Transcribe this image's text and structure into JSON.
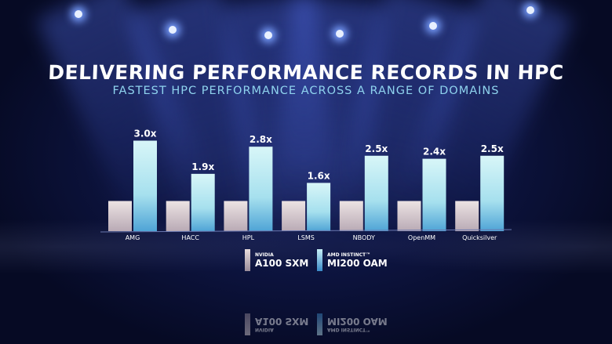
{
  "chart_data": {
    "type": "bar",
    "title": "DELIVERING PERFORMANCE RECORDS IN HPC",
    "subtitle": "FASTEST HPC PERFORMANCE ACROSS A RANGE OF DOMAINS",
    "categories": [
      "AMG",
      "HACC",
      "HPL",
      "LSMS",
      "NBODY",
      "OpenMM",
      "Quicksilver"
    ],
    "series": [
      {
        "name": "NVIDIA A100 SXM",
        "brand": "NVIDIA",
        "model": "A100 SXM",
        "values": [
          1,
          1,
          1,
          1,
          1,
          1,
          1
        ],
        "color": "#d9cdd0"
      },
      {
        "name": "AMD INSTINCT MI200 OAM",
        "brand": "AMD INSTINCT™",
        "model": "MI200 OAM",
        "values": [
          3.0,
          1.9,
          2.8,
          1.6,
          2.5,
          2.4,
          2.5
        ],
        "color": "#a8e4f0"
      }
    ],
    "data_labels": [
      "3.0x",
      "1.9x",
      "2.8x",
      "1.6x",
      "2.5x",
      "2.4x",
      "2.5x"
    ],
    "ylim": [
      0,
      3.2
    ],
    "grid": false,
    "legend": "bottom-center"
  }
}
